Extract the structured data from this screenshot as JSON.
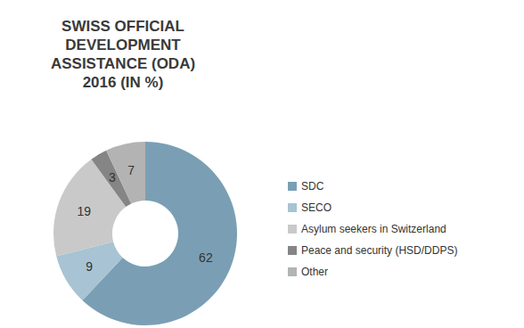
{
  "chart_data": {
    "type": "pie",
    "title": "SWISS OFFICIAL\nDEVELOPMENT\nASSISTANCE (ODA)\n2016 (IN %)",
    "categories": [
      "SDC",
      "SECO",
      "Asylum seekers in Switzerland",
      "Peace and security (HSD/DDPS)",
      "Other"
    ],
    "values": [
      62,
      9,
      19,
      3,
      7
    ],
    "colors": [
      "#7a9fb4",
      "#a8c3d3",
      "#c9c9c9",
      "#858585",
      "#b3b3b3"
    ],
    "data_labels": true,
    "legend": "right"
  }
}
